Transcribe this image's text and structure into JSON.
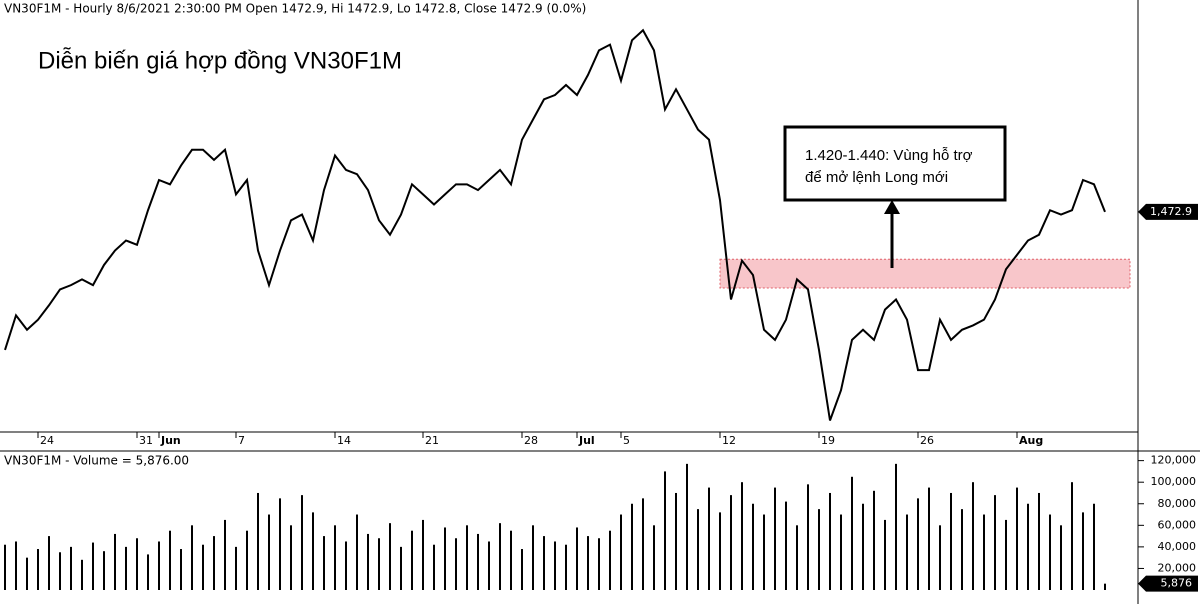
{
  "header": "VN30F1M - Hourly 8/6/2021 2:30:00 PM Open 1472.9, Hi 1472.9, Lo 1472.8, Close 1472.9 (0.0%)",
  "chart_data": [
    {
      "type": "line",
      "title": "Diễn biến giá hợp đồng VN30F1M",
      "categories": [
        null,
        null,
        null,
        "24",
        null,
        null,
        null,
        null,
        null,
        null,
        null,
        null,
        "31",
        null,
        "Jun",
        null,
        null,
        null,
        null,
        null,
        null,
        "7",
        null,
        null,
        null,
        null,
        null,
        null,
        null,
        null,
        "14",
        null,
        null,
        null,
        null,
        null,
        null,
        null,
        "21",
        null,
        null,
        null,
        null,
        null,
        null,
        null,
        null,
        "28",
        null,
        null,
        null,
        null,
        "Jul",
        null,
        null,
        null,
        "5",
        null,
        null,
        null,
        null,
        null,
        null,
        null,
        null,
        "12",
        null,
        null,
        null,
        null,
        null,
        null,
        null,
        null,
        "19",
        null,
        null,
        null,
        null,
        null,
        null,
        null,
        null,
        "26",
        null,
        null,
        null,
        null,
        null,
        null,
        null,
        null,
        "Aug",
        null,
        null,
        null,
        null,
        null,
        null,
        null,
        null
      ],
      "series": [
        {
          "name": "VN30F1M",
          "color": "#000000",
          "values": [
            1377,
            1401,
            1391,
            1398,
            1408,
            1419,
            1422,
            1426,
            1422,
            1436,
            1446,
            1453,
            1450,
            1474,
            1495,
            1492,
            1505,
            1516,
            1516,
            1509,
            1516,
            1485,
            1495,
            1446,
            1422,
            1446,
            1467,
            1471,
            1453,
            1488,
            1512,
            1502,
            1499,
            1488,
            1467,
            1457,
            1471,
            1492,
            1485,
            1478,
            1485,
            1492,
            1492,
            1488,
            1495,
            1502,
            1492,
            1523,
            1537,
            1551,
            1554,
            1561,
            1554,
            1568,
            1585,
            1589,
            1564,
            1592,
            1599,
            1585,
            1544,
            1558,
            1544,
            1530,
            1523,
            1481,
            1412,
            1439,
            1429,
            1391,
            1384,
            1398,
            1426,
            1419,
            1377,
            1328,
            1349,
            1384,
            1391,
            1384,
            1405,
            1412,
            1398,
            1363,
            1363,
            1398,
            1384,
            1391,
            1394,
            1398,
            1412,
            1433,
            1443,
            1453,
            1457,
            1474,
            1471,
            1474,
            1495,
            1492,
            1472.9
          ]
        }
      ],
      "last_label": "1,472.9",
      "ylim": [
        1320,
        1620
      ],
      "zone": [
        1420,
        1440
      ],
      "annotation": [
        "1.420-1.440: Vùng hỗ trợ",
        "để mở lệnh Long mới"
      ]
    },
    {
      "type": "bar",
      "title": "VN30F1M - Volume = 5,876.00",
      "color": "#000000",
      "values": [
        42000,
        45000,
        30000,
        38000,
        50000,
        35000,
        40000,
        28000,
        44000,
        36000,
        52000,
        40000,
        48000,
        33000,
        45000,
        55000,
        38000,
        60000,
        42000,
        50000,
        65000,
        40000,
        55000,
        90000,
        70000,
        85000,
        60000,
        88000,
        72000,
        50000,
        60000,
        45000,
        70000,
        52000,
        48000,
        62000,
        40000,
        55000,
        65000,
        42000,
        58000,
        48000,
        60000,
        52000,
        45000,
        62000,
        55000,
        38000,
        60000,
        50000,
        45000,
        42000,
        58000,
        50000,
        48000,
        55000,
        70000,
        80000,
        85000,
        60000,
        110000,
        90000,
        117000,
        75000,
        95000,
        72000,
        88000,
        100000,
        80000,
        70000,
        95000,
        82000,
        60000,
        98000,
        75000,
        90000,
        70000,
        105000,
        80000,
        92000,
        65000,
        117000,
        70000,
        85000,
        95000,
        60000,
        90000,
        75000,
        100000,
        70000,
        88000,
        65000,
        95000,
        80000,
        90000,
        70000,
        60000,
        100000,
        72000,
        80000,
        5876
      ],
      "last_label": "5,876",
      "ylim": [
        0,
        128000
      ],
      "yticks": [
        {
          "value": 20000,
          "label": "20,000"
        },
        {
          "value": 40000,
          "label": "40,000"
        },
        {
          "value": 60000,
          "label": "60,000"
        },
        {
          "value": 80000,
          "label": "80,000"
        },
        {
          "value": 100000,
          "label": "100,000"
        },
        {
          "value": 120000,
          "label": "120,000"
        }
      ]
    }
  ]
}
